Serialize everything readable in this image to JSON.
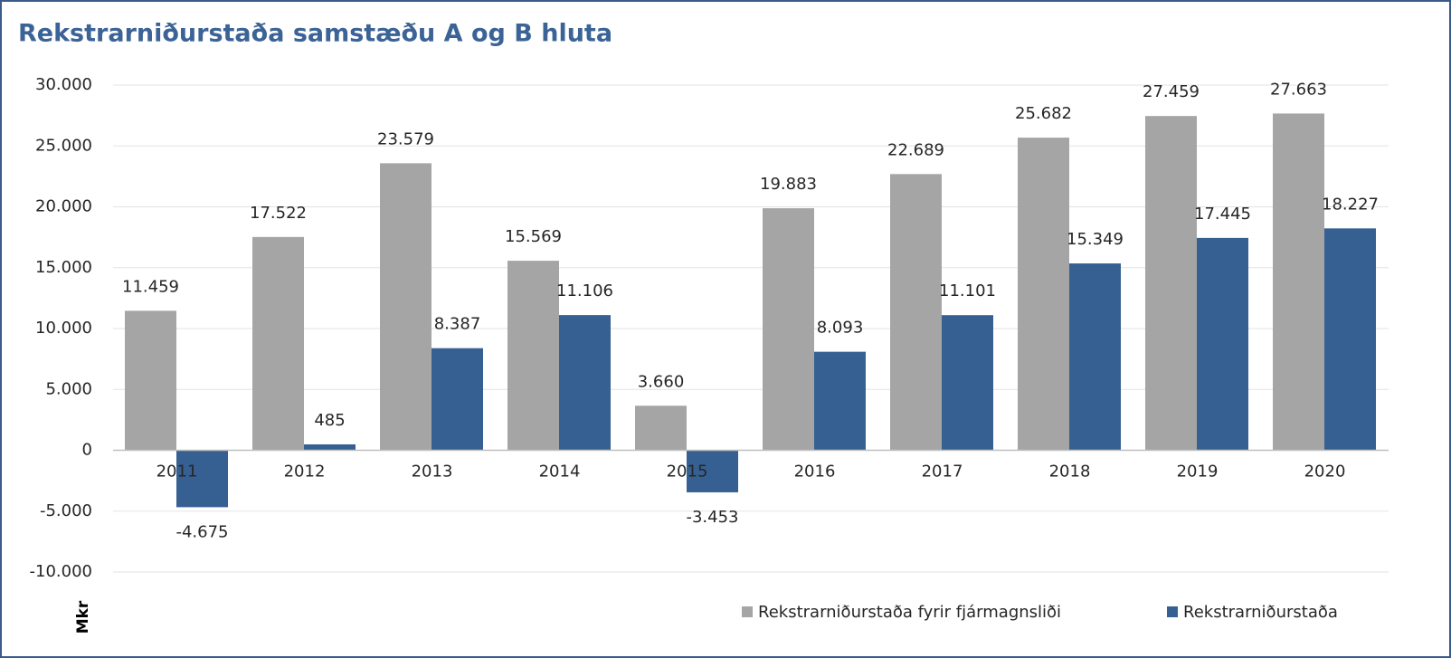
{
  "chart_data": {
    "type": "bar",
    "title": "Rekstrarniðurstaða samstæðu A og B hluta",
    "y_label": "Mkr",
    "categories": [
      "2011",
      "2012",
      "2013",
      "2014",
      "2015",
      "2016",
      "2017",
      "2018",
      "2019",
      "2020"
    ],
    "series": [
      {
        "name": "Rekstrarniðurstaða fyrir fjármagnsliði",
        "color": "#a5a5a5",
        "values": [
          11459,
          17522,
          23579,
          15569,
          3660,
          19883,
          22689,
          25682,
          27459,
          27663
        ],
        "value_labels": [
          "11.459",
          "17.522",
          "23.579",
          "15.569",
          "3.660",
          "19.883",
          "22.689",
          "25.682",
          "27.459",
          "27.663"
        ]
      },
      {
        "name": "Rekstrarniðurstaða",
        "color": "#376092",
        "values": [
          -4675,
          485,
          8387,
          11106,
          -3453,
          8093,
          11101,
          15349,
          17445,
          18227
        ],
        "value_labels": [
          "-4.675",
          "485",
          "8.387",
          "11.106",
          "-3.453",
          "8.093",
          "11.101",
          "15.349",
          "17.445",
          "18.227"
        ]
      }
    ],
    "ylim": [
      -10000,
      30000
    ],
    "yticks": [
      {
        "value": -10000,
        "label": "-10.000"
      },
      {
        "value": -5000,
        "label": "-5.000"
      },
      0,
      {
        "value": 5000,
        "label": "5.000"
      },
      {
        "value": 10000,
        "label": "10.000"
      },
      {
        "value": 15000,
        "label": "15.000"
      },
      {
        "value": 20000,
        "label": "20.000"
      },
      {
        "value": 25000,
        "label": "25.000"
      },
      {
        "value": 30000,
        "label": "30.000"
      }
    ],
    "grid": true,
    "legend": "bottom"
  }
}
